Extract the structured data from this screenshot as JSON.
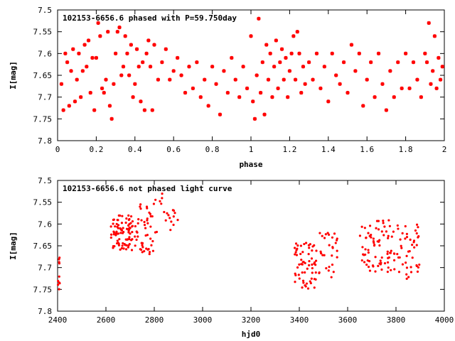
{
  "chart_data": [
    {
      "type": "scatter",
      "title": "102153-6656.6 phased with P=59.750day",
      "xlabel": "phase",
      "ylabel": "I[mag]",
      "xlim": [
        0,
        2
      ],
      "ylim": [
        7.8,
        7.5
      ],
      "y_inverted": true,
      "x_ticks": [
        "0",
        "0.2",
        "0.4",
        "0.6",
        "0.8",
        "1",
        "1.2",
        "1.4",
        "1.6",
        "1.8",
        "2"
      ],
      "y_ticks": [
        "7.5",
        "7.55",
        "7.6",
        "7.65",
        "7.7",
        "7.75",
        "7.8"
      ],
      "marker": "star",
      "color": "#ff0000",
      "grid": false,
      "points_seed": [
        [
          0.02,
          7.67
        ],
        [
          0.03,
          7.73
        ],
        [
          0.04,
          7.6
        ],
        [
          0.05,
          7.62
        ],
        [
          0.06,
          7.72
        ],
        [
          0.07,
          7.64
        ],
        [
          0.08,
          7.59
        ],
        [
          0.09,
          7.71
        ],
        [
          0.1,
          7.66
        ],
        [
          0.11,
          7.6
        ],
        [
          0.12,
          7.7
        ],
        [
          0.13,
          7.64
        ],
        [
          0.14,
          7.58
        ],
        [
          0.15,
          7.63
        ],
        [
          0.16,
          7.57
        ],
        [
          0.17,
          7.69
        ],
        [
          0.18,
          7.61
        ],
        [
          0.19,
          7.73
        ],
        [
          0.2,
          7.61
        ],
        [
          0.21,
          7.53
        ],
        [
          0.22,
          7.56
        ],
        [
          0.23,
          7.68
        ],
        [
          0.24,
          7.69
        ],
        [
          0.25,
          7.66
        ],
        [
          0.26,
          7.55
        ],
        [
          0.27,
          7.72
        ],
        [
          0.28,
          7.75
        ],
        [
          0.29,
          7.67
        ],
        [
          0.3,
          7.6
        ],
        [
          0.31,
          7.55
        ],
        [
          0.32,
          7.54
        ],
        [
          0.33,
          7.65
        ],
        [
          0.34,
          7.63
        ],
        [
          0.35,
          7.56
        ],
        [
          0.36,
          7.6
        ],
        [
          0.37,
          7.65
        ],
        [
          0.38,
          7.58
        ],
        [
          0.39,
          7.7
        ],
        [
          0.4,
          7.67
        ],
        [
          0.41,
          7.59
        ],
        [
          0.42,
          7.63
        ],
        [
          0.43,
          7.71
        ],
        [
          0.44,
          7.62
        ],
        [
          0.45,
          7.73
        ],
        [
          0.46,
          7.6
        ],
        [
          0.47,
          7.57
        ],
        [
          0.48,
          7.63
        ],
        [
          0.49,
          7.73
        ],
        [
          0.5,
          7.58
        ],
        [
          0.52,
          7.66
        ],
        [
          0.54,
          7.62
        ],
        [
          0.56,
          7.59
        ],
        [
          0.58,
          7.66
        ],
        [
          0.6,
          7.64
        ],
        [
          0.62,
          7.61
        ],
        [
          0.64,
          7.65
        ],
        [
          0.66,
          7.69
        ],
        [
          0.68,
          7.63
        ],
        [
          0.7,
          7.68
        ],
        [
          0.72,
          7.62
        ],
        [
          0.74,
          7.7
        ],
        [
          0.76,
          7.66
        ],
        [
          0.78,
          7.72
        ],
        [
          0.8,
          7.63
        ],
        [
          0.82,
          7.67
        ],
        [
          0.84,
          7.74
        ],
        [
          0.86,
          7.64
        ],
        [
          0.88,
          7.69
        ],
        [
          0.9,
          7.61
        ],
        [
          0.92,
          7.66
        ],
        [
          0.94,
          7.7
        ],
        [
          0.96,
          7.63
        ],
        [
          0.98,
          7.68
        ],
        [
          1.0,
          7.56
        ],
        [
          1.01,
          7.71
        ],
        [
          1.02,
          7.75
        ],
        [
          1.03,
          7.65
        ],
        [
          1.04,
          7.52
        ],
        [
          1.05,
          7.69
        ],
        [
          1.06,
          7.62
        ],
        [
          1.07,
          7.74
        ],
        [
          1.08,
          7.58
        ],
        [
          1.09,
          7.66
        ],
        [
          1.1,
          7.6
        ],
        [
          1.11,
          7.7
        ],
        [
          1.12,
          7.63
        ],
        [
          1.13,
          7.57
        ],
        [
          1.14,
          7.68
        ],
        [
          1.15,
          7.62
        ],
        [
          1.16,
          7.59
        ],
        [
          1.17,
          7.66
        ],
        [
          1.18,
          7.61
        ],
        [
          1.19,
          7.7
        ],
        [
          1.2,
          7.64
        ],
        [
          1.21,
          7.6
        ],
        [
          1.22,
          7.56
        ],
        [
          1.23,
          7.66
        ],
        [
          1.24,
          7.55
        ],
        [
          1.25,
          7.6
        ],
        [
          1.26,
          7.69
        ],
        [
          1.27,
          7.63
        ],
        [
          1.28,
          7.67
        ],
        [
          1.3,
          7.62
        ],
        [
          1.32,
          7.66
        ],
        [
          1.34,
          7.6
        ],
        [
          1.36,
          7.68
        ],
        [
          1.38,
          7.63
        ],
        [
          1.4,
          7.71
        ],
        [
          1.42,
          7.6
        ],
        [
          1.44,
          7.65
        ],
        [
          1.46,
          7.67
        ],
        [
          1.48,
          7.62
        ],
        [
          1.5,
          7.69
        ],
        [
          1.52,
          7.58
        ],
        [
          1.54,
          7.64
        ],
        [
          1.56,
          7.6
        ],
        [
          1.58,
          7.72
        ],
        [
          1.6,
          7.66
        ],
        [
          1.62,
          7.62
        ],
        [
          1.64,
          7.7
        ],
        [
          1.66,
          7.6
        ],
        [
          1.68,
          7.67
        ],
        [
          1.7,
          7.73
        ],
        [
          1.72,
          7.64
        ],
        [
          1.74,
          7.7
        ],
        [
          1.76,
          7.62
        ],
        [
          1.78,
          7.68
        ],
        [
          1.8,
          7.6
        ],
        [
          1.82,
          7.68
        ],
        [
          1.84,
          7.62
        ],
        [
          1.86,
          7.66
        ],
        [
          1.88,
          7.7
        ],
        [
          1.9,
          7.6
        ],
        [
          1.91,
          7.62
        ],
        [
          1.92,
          7.53
        ],
        [
          1.93,
          7.67
        ],
        [
          1.94,
          7.64
        ],
        [
          1.95,
          7.56
        ],
        [
          1.96,
          7.68
        ],
        [
          1.97,
          7.61
        ],
        [
          1.98,
          7.66
        ],
        [
          1.99,
          7.63
        ]
      ]
    },
    {
      "type": "scatter",
      "title": "102153-6656.6 not phased light curve",
      "xlabel": "hjd0",
      "ylabel": "I[mag]",
      "xlim": [
        2400,
        4000
      ],
      "ylim": [
        7.8,
        7.5
      ],
      "y_inverted": true,
      "x_ticks": [
        "2400",
        "2600",
        "2800",
        "3000",
        "3200",
        "3400",
        "3600",
        "3800",
        "4000"
      ],
      "y_ticks": [
        "7.5",
        "7.55",
        "7.6",
        "7.65",
        "7.7",
        "7.75",
        "7.8"
      ],
      "marker": "dot",
      "color": "#ff0000",
      "grid": false,
      "clusters": [
        {
          "x_range": [
            2400,
            2410
          ],
          "y_range": [
            7.66,
            7.75
          ],
          "count": 10
        },
        {
          "x_range": [
            2620,
            2730
          ],
          "y_range": [
            7.58,
            7.66
          ],
          "count": 90
        },
        {
          "x_range": [
            2730,
            2800
          ],
          "y_range": [
            7.55,
            7.67
          ],
          "count": 40
        },
        {
          "x_range": [
            2800,
            2900
          ],
          "y_range": [
            7.53,
            7.62
          ],
          "count": 20
        },
        {
          "x_range": [
            3380,
            3470
          ],
          "y_range": [
            7.64,
            7.75
          ],
          "count": 60
        },
        {
          "x_range": [
            3470,
            3560
          ],
          "y_range": [
            7.62,
            7.73
          ],
          "count": 30
        },
        {
          "x_range": [
            3650,
            3780
          ],
          "y_range": [
            7.59,
            7.71
          ],
          "count": 70
        },
        {
          "x_range": [
            3780,
            3900
          ],
          "y_range": [
            7.6,
            7.73
          ],
          "count": 50
        }
      ]
    }
  ]
}
